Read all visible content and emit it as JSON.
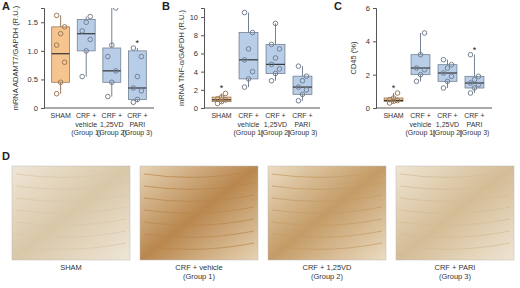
{
  "chart_data": [
    {
      "type": "box",
      "panel": "A",
      "y_label": "mRNA ADAMT7/GAPDH (R.U.)",
      "categories": [
        [
          "SHAM"
        ],
        [
          "CRF +",
          "vehicle",
          "(Group 1)"
        ],
        [
          "CRF +",
          "1,25VD",
          "(Group 2)"
        ],
        [
          "CRF +",
          "PARI",
          "(Group 3)"
        ]
      ],
      "colors": [
        "#f6c48f",
        "#b8cde8",
        "#b8cde8",
        "#b8cde8"
      ],
      "ylim": [
        0,
        1.75
      ],
      "yticks": [
        0,
        0.5,
        {
          "value": 1,
          "label": "1.0"
        },
        1.5
      ],
      "boxes": [
        {
          "min": 0.25,
          "q1": 0.45,
          "median": 0.95,
          "q3": 1.42,
          "max": 1.62,
          "points": [
            0.25,
            0.45,
            0.8,
            1.1,
            1.3,
            1.42,
            1.62
          ]
        },
        {
          "min": 0.55,
          "q1": 1.0,
          "median": 1.3,
          "q3": 1.55,
          "max": 1.6,
          "points": [
            0.55,
            1.0,
            1.2,
            1.35,
            1.5,
            1.6
          ]
        },
        {
          "min": 0.2,
          "q1": 0.45,
          "median": 0.65,
          "q3": 1.05,
          "max": 1.75,
          "points": [
            0.2,
            0.45,
            0.65,
            0.9,
            1.1,
            1.75
          ]
        },
        {
          "min": 0.1,
          "q1": 0.15,
          "median": 0.35,
          "q3": 1.0,
          "max": 1.05,
          "points": [
            0.1,
            0.15,
            0.3,
            0.35,
            0.55,
            0.9,
            1.05
          ],
          "annotation": "*"
        }
      ]
    },
    {
      "type": "box",
      "panel": "B",
      "y_label": "mRNA TNF-α/GAPDH (R.U.)",
      "categories": [
        [
          "SHAM"
        ],
        [
          "CRF +",
          "vehicle",
          "(Group 1)"
        ],
        [
          "CRF +",
          "1,25VD",
          "(Group 2)"
        ],
        [
          "CRF +",
          "PARI",
          "(Group 3)"
        ]
      ],
      "colors": [
        "#f6c48f",
        "#b8cde8",
        "#b8cde8",
        "#b8cde8"
      ],
      "ylim": [
        0,
        11
      ],
      "yticks": [
        0,
        2,
        4,
        6,
        8,
        10
      ],
      "boxes": [
        {
          "min": 0.5,
          "q1": 0.7,
          "median": 0.9,
          "q3": 1.2,
          "max": 1.6,
          "points": [
            0.5,
            0.7,
            0.9,
            1.0,
            1.2,
            1.6
          ],
          "annotation": "*"
        },
        {
          "min": 2.3,
          "q1": 3.2,
          "median": 5.3,
          "q3": 8.3,
          "max": 10.5,
          "points": [
            2.3,
            3.2,
            4.0,
            5.3,
            6.5,
            8.3,
            10.5
          ]
        },
        {
          "min": 3.0,
          "q1": 3.8,
          "median": 4.8,
          "q3": 7.0,
          "max": 9.3,
          "points": [
            3.0,
            3.8,
            4.3,
            4.8,
            5.5,
            6.5,
            7.0,
            9.3
          ]
        },
        {
          "min": 0.8,
          "q1": 1.5,
          "median": 2.3,
          "q3": 3.5,
          "max": 4.6,
          "points": [
            0.8,
            1.5,
            2.0,
            2.3,
            3.0,
            3.5,
            4.6
          ]
        }
      ]
    },
    {
      "type": "box",
      "panel": "C",
      "y_label": "CD45 (%)",
      "categories": [
        [
          "SHAM"
        ],
        [
          "CRF +",
          "vehicle",
          "(Group 1)"
        ],
        [
          "CRF +",
          "1,25VD",
          "(Group 2)"
        ],
        [
          "CRF +",
          "PARI",
          "(Group 3)"
        ]
      ],
      "colors": [
        "#f6c48f",
        "#b8cde8",
        "#b8cde8",
        "#b8cde8"
      ],
      "ylim": [
        0,
        6
      ],
      "yticks": [
        0,
        2,
        4,
        6
      ],
      "boxes": [
        {
          "min": 0.3,
          "q1": 0.4,
          "median": 0.45,
          "q3": 0.6,
          "max": 0.9,
          "points": [
            0.3,
            0.4,
            0.45,
            0.5,
            0.6,
            0.9
          ],
          "annotation": "*"
        },
        {
          "min": 1.6,
          "q1": 2.0,
          "median": 2.4,
          "q3": 3.2,
          "max": 4.5,
          "points": [
            1.6,
            2.0,
            2.3,
            2.4,
            3.2,
            4.5
          ]
        },
        {
          "min": 1.2,
          "q1": 1.6,
          "median": 2.1,
          "q3": 2.6,
          "max": 2.9,
          "points": [
            1.2,
            1.6,
            1.9,
            2.1,
            2.4,
            2.6,
            2.9
          ]
        },
        {
          "min": 0.9,
          "q1": 1.2,
          "median": 1.5,
          "q3": 1.9,
          "max": 3.2,
          "points": [
            0.9,
            1.2,
            1.4,
            1.5,
            1.7,
            1.9,
            3.2
          ],
          "annotation": "*"
        }
      ]
    }
  ],
  "panel_d": {
    "panel": "D",
    "labels": [
      [
        "SHAM"
      ],
      [
        "CRF + vehicle",
        "(Group 1)"
      ],
      [
        "CRF + 1,25VD",
        "(Group 2)"
      ],
      [
        "CRF + PARI",
        "(Group 3)"
      ]
    ]
  }
}
